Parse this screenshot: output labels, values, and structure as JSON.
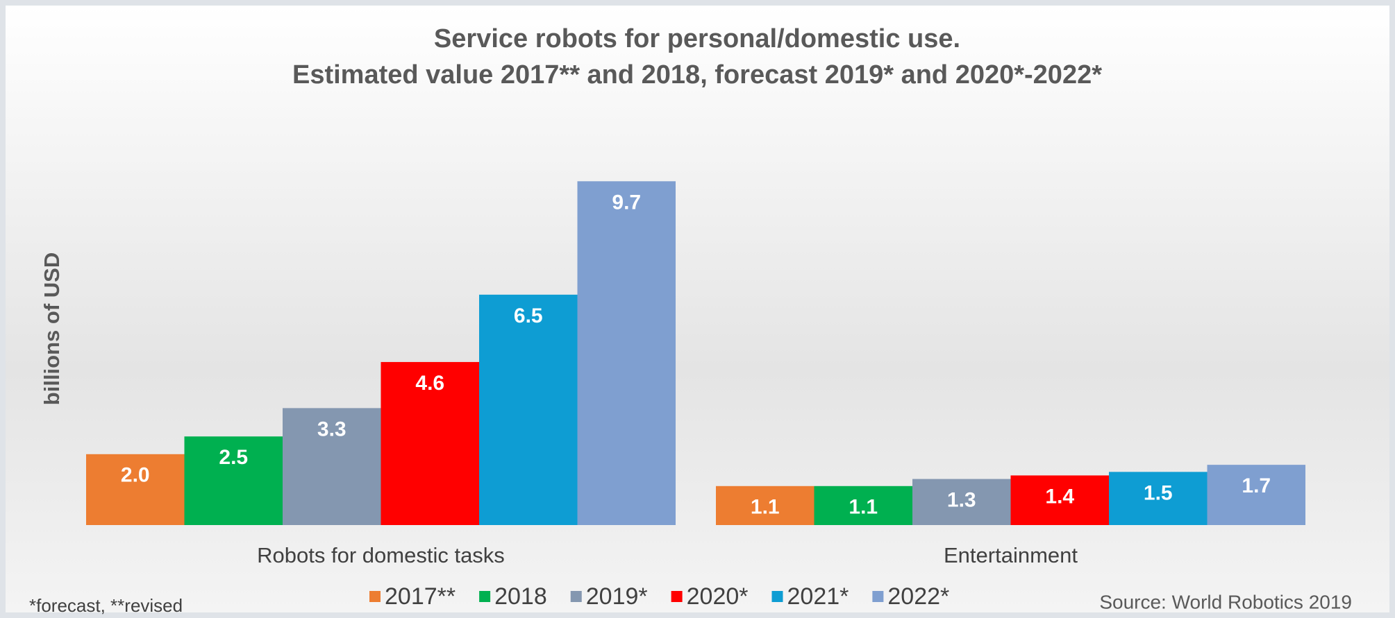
{
  "chart_data": {
    "type": "bar",
    "title": "Service robots for personal/domestic use.",
    "subtitle": "Estimated value 2017** and 2018, forecast 2019* and 2020*-2022*",
    "ylabel": "billions of USD",
    "categories": [
      "Robots for domestic tasks",
      "Entertainment"
    ],
    "ylim": [
      0,
      10
    ],
    "series": [
      {
        "name": "2017**",
        "color": "#ed7d31",
        "values": [
          2,
          1.1
        ],
        "value_labels": [
          "2.0",
          "1.1"
        ]
      },
      {
        "name": "2018",
        "color": "#00b050",
        "values": [
          2.5,
          1.1
        ],
        "value_labels": [
          "2.5",
          "1.1"
        ]
      },
      {
        "name": "2019*",
        "color": "#8497b0",
        "values": [
          3.3,
          1.3
        ],
        "value_labels": [
          "3.3",
          "1.3"
        ]
      },
      {
        "name": "2020*",
        "color": "#ff0000",
        "values": [
          4.6,
          1.4
        ],
        "value_labels": [
          "4.6",
          "1.4"
        ]
      },
      {
        "name": "2021*",
        "color": "#0e9dd3",
        "values": [
          6.5,
          1.5
        ],
        "value_labels": [
          "6.5",
          "1.5"
        ]
      },
      {
        "name": "2022*",
        "color": "#7f9fd0",
        "values": [
          9.7,
          1.7
        ],
        "value_labels": [
          "9.7",
          "1.7"
        ]
      }
    ],
    "footnote": "*forecast, **revised",
    "source": "Source: World Robotics 2019"
  }
}
